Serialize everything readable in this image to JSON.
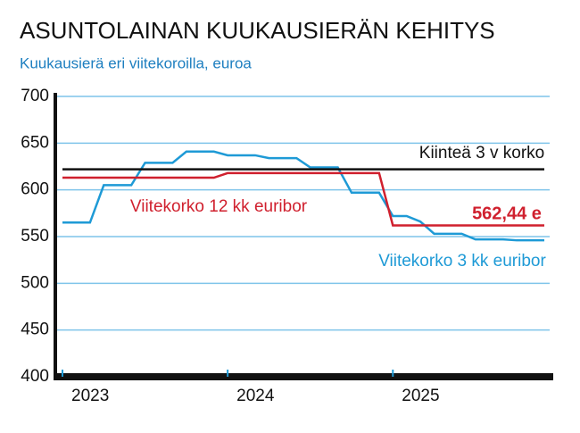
{
  "chart_data": {
    "type": "line",
    "title": "ASUNTOLAINAN KUUKAUSIERÄN KEHITYS",
    "subtitle": "Kuukausierä eri viitekoroilla, euroa",
    "x": [
      0,
      1,
      2,
      3,
      4,
      5,
      6,
      7,
      8,
      9,
      10,
      11,
      12,
      13,
      14,
      15,
      16,
      17,
      18,
      19,
      20,
      21,
      22,
      23,
      24,
      25,
      26,
      27,
      28,
      29,
      30,
      31,
      32,
      33,
      34,
      35
    ],
    "xlim": [
      0,
      35
    ],
    "xticks": [
      {
        "value": 0,
        "label": "2023"
      },
      {
        "value": 12,
        "label": "2024"
      },
      {
        "value": 24,
        "label": "2025"
      }
    ],
    "ylim": [
      400,
      700
    ],
    "yticks": [
      400,
      450,
      500,
      550,
      600,
      650,
      700
    ],
    "grid": true,
    "series": [
      {
        "name": "Viitekorko 3 kk euribor",
        "color": "#1e9ad6",
        "values": [
          565,
          565,
          565,
          605,
          605,
          605,
          629,
          629,
          629,
          641,
          641,
          641,
          637,
          637,
          637,
          634,
          634,
          634,
          624,
          624,
          624,
          597,
          597,
          597,
          572,
          572,
          566,
          553,
          553,
          553,
          547,
          547,
          547,
          546,
          546,
          546
        ]
      },
      {
        "name": "Viitekorko 12 kk euribor",
        "color": "#d0202e",
        "values": [
          613,
          613,
          613,
          613,
          613,
          613,
          613,
          613,
          613,
          613,
          613,
          613,
          618,
          618,
          618,
          618,
          618,
          618,
          618,
          618,
          618,
          618,
          618,
          618,
          562,
          562,
          562,
          562,
          562,
          562,
          562,
          562,
          562,
          562,
          562,
          562
        ]
      },
      {
        "name": "Kiinteä 3 v korko",
        "color": "#111111",
        "values": [
          622,
          622,
          622,
          622,
          622,
          622,
          622,
          622,
          622,
          622,
          622,
          622,
          622,
          622,
          622,
          622,
          622,
          622,
          622,
          622,
          622,
          622,
          622,
          622,
          622,
          622,
          622,
          622,
          622,
          622,
          622,
          622,
          622,
          622,
          622,
          622
        ]
      }
    ],
    "annotations": [
      {
        "text": "562,44 e",
        "color": "#d0202e"
      }
    ]
  }
}
